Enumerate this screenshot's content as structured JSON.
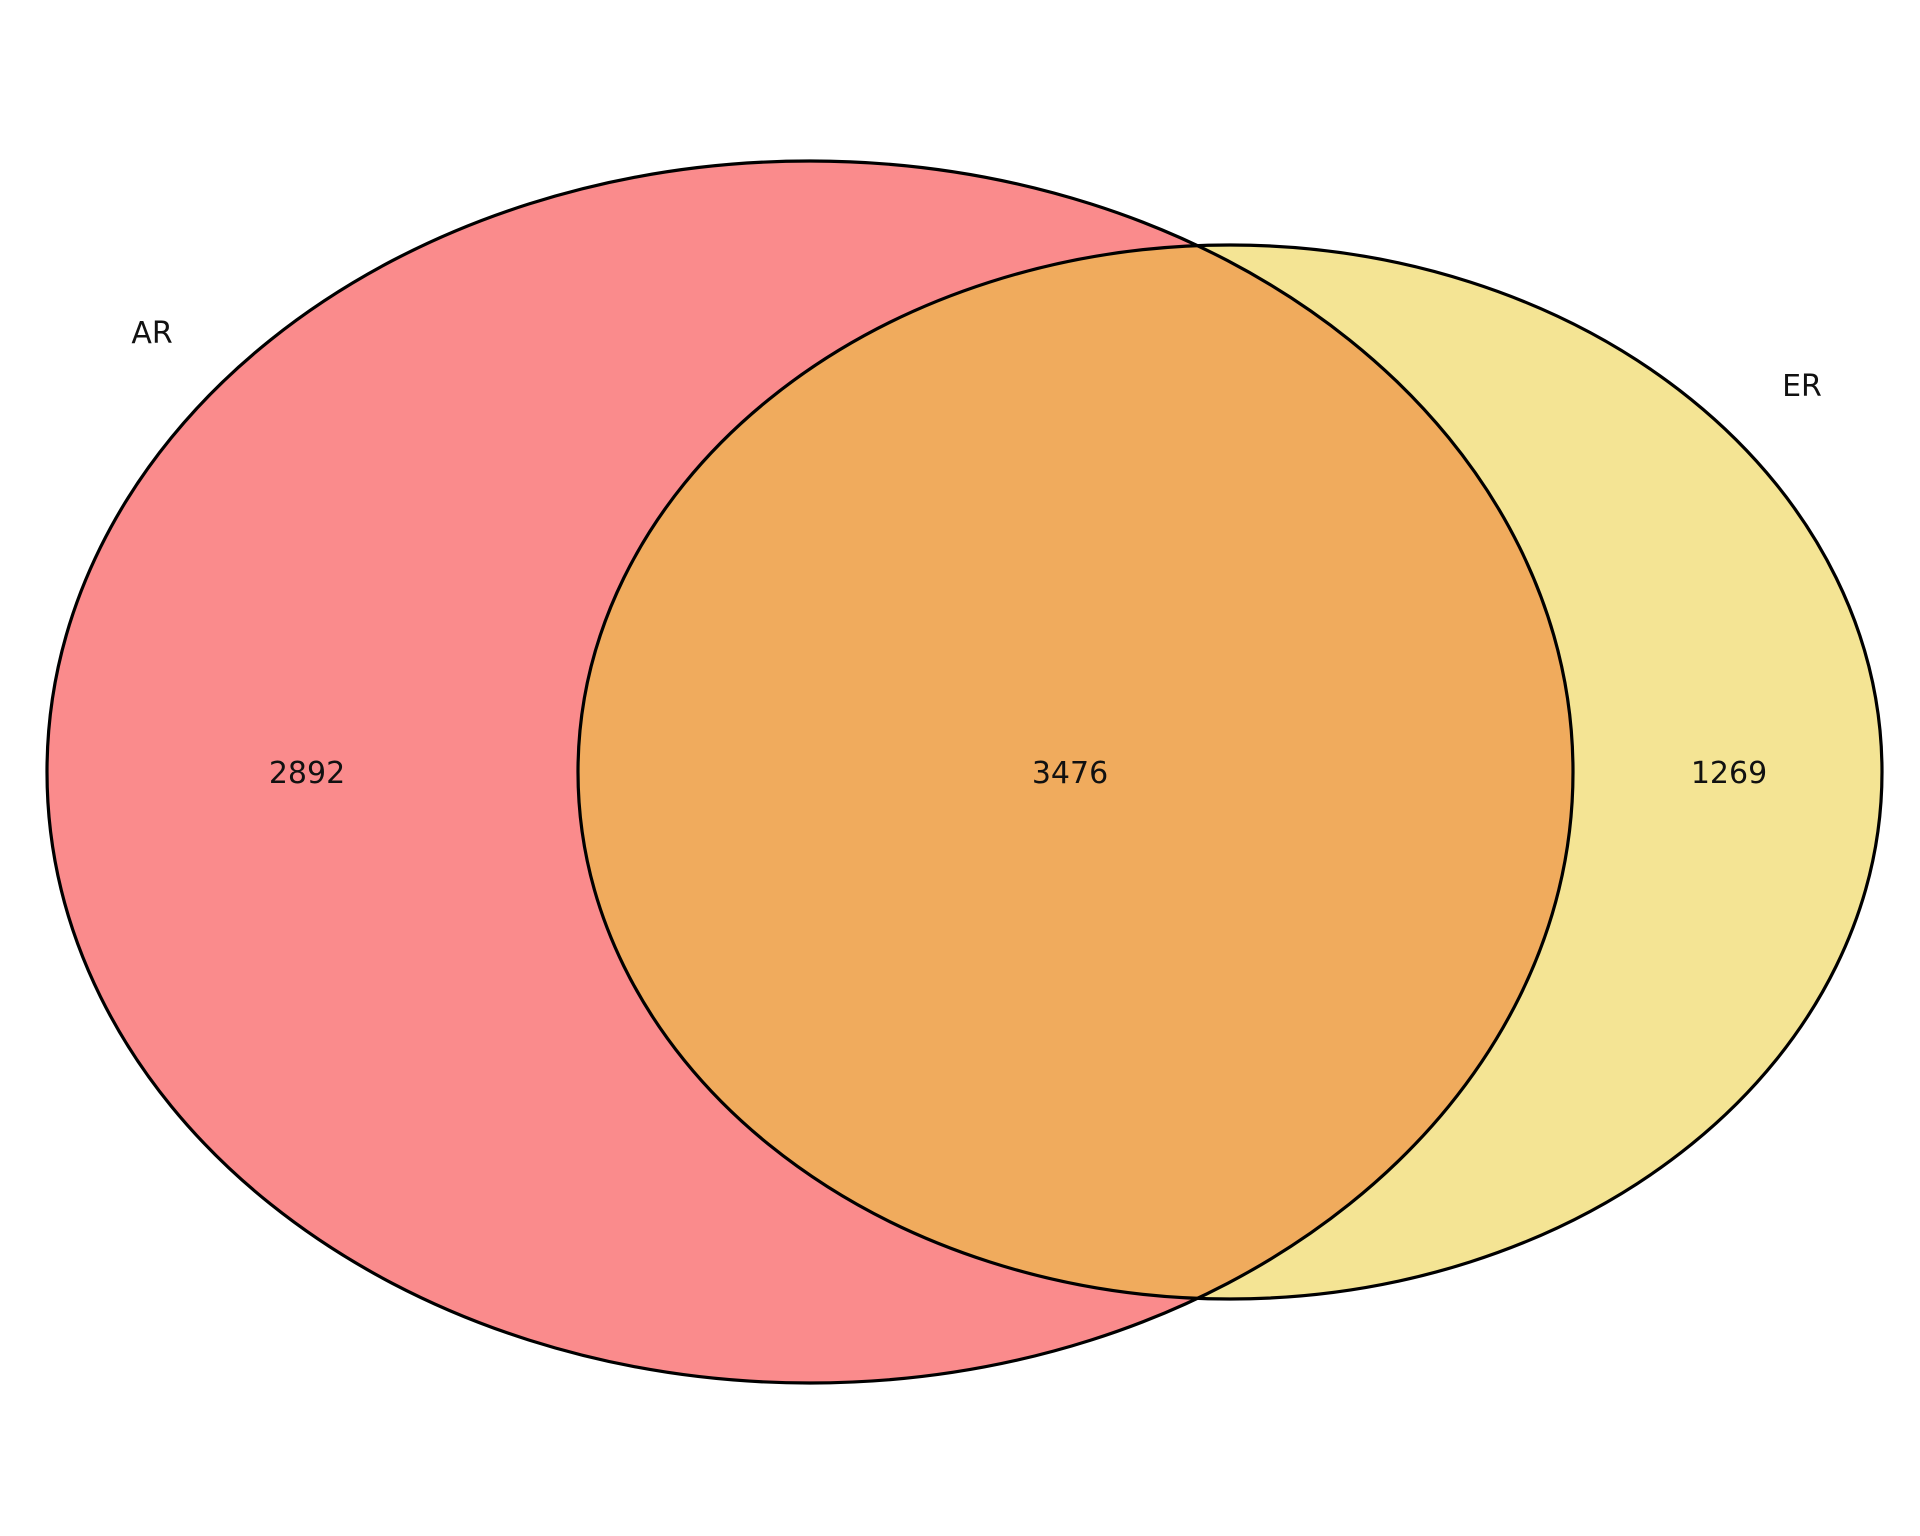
{
  "chart_data": {
    "type": "venn",
    "sets": [
      {
        "label": "AR",
        "only_count": "2892",
        "color": "#FA8B8C"
      },
      {
        "label": "ER",
        "only_count": "1269",
        "color": "#F4E494"
      }
    ],
    "intersection": {
      "count": "3476",
      "color": "#F0AB5D"
    },
    "outline_color": "#000000"
  }
}
